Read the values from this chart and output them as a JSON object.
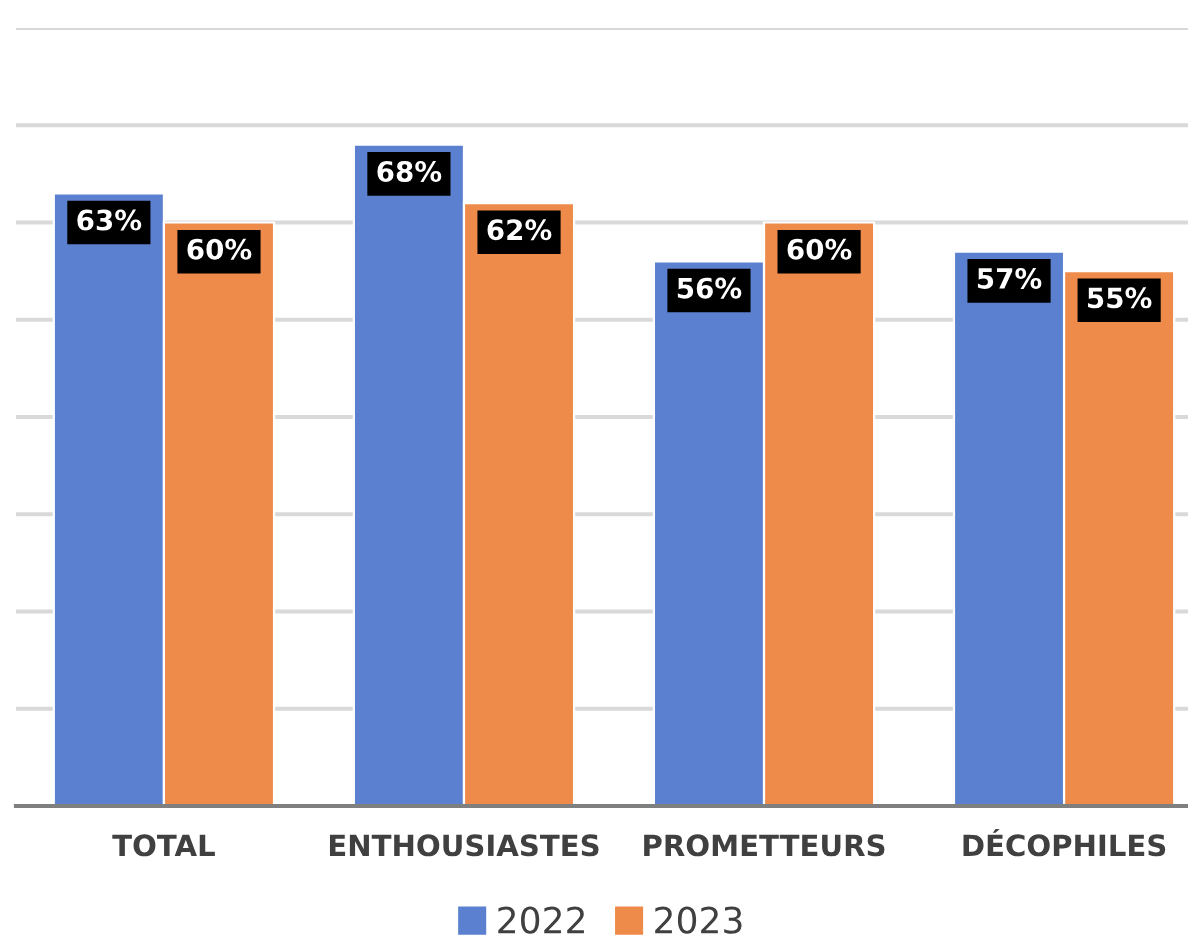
{
  "chart_data": {
    "type": "bar",
    "categories": [
      "TOTAL",
      "ENTHOUSIASTES",
      "PROMETTEURS",
      "DÉCOPHILES"
    ],
    "series": [
      {
        "name": "2022",
        "color": "#5b80d0",
        "values": [
          63,
          68,
          56,
          57
        ],
        "value_labels": [
          "63%",
          "68%",
          "56%",
          "57%"
        ]
      },
      {
        "name": "2023",
        "color": "#ef8b4a",
        "values": [
          60,
          62,
          60,
          55
        ],
        "value_labels": [
          "60%",
          "62%",
          "60%",
          "55%"
        ]
      }
    ],
    "ylim": [
      0,
      80
    ],
    "yticks": [
      {
        "value": 0,
        "label": null
      },
      {
        "value": 10,
        "label": null
      },
      {
        "value": 20,
        "label": null
      },
      {
        "value": 30,
        "label": null
      },
      {
        "value": 40,
        "label": null
      },
      {
        "value": 50,
        "label": null
      },
      {
        "value": 60,
        "label": null
      },
      {
        "value": 70,
        "label": null
      },
      {
        "value": 80,
        "label": null
      }
    ],
    "grid": "y",
    "legend": "bottom",
    "tick_labels": "x"
  }
}
